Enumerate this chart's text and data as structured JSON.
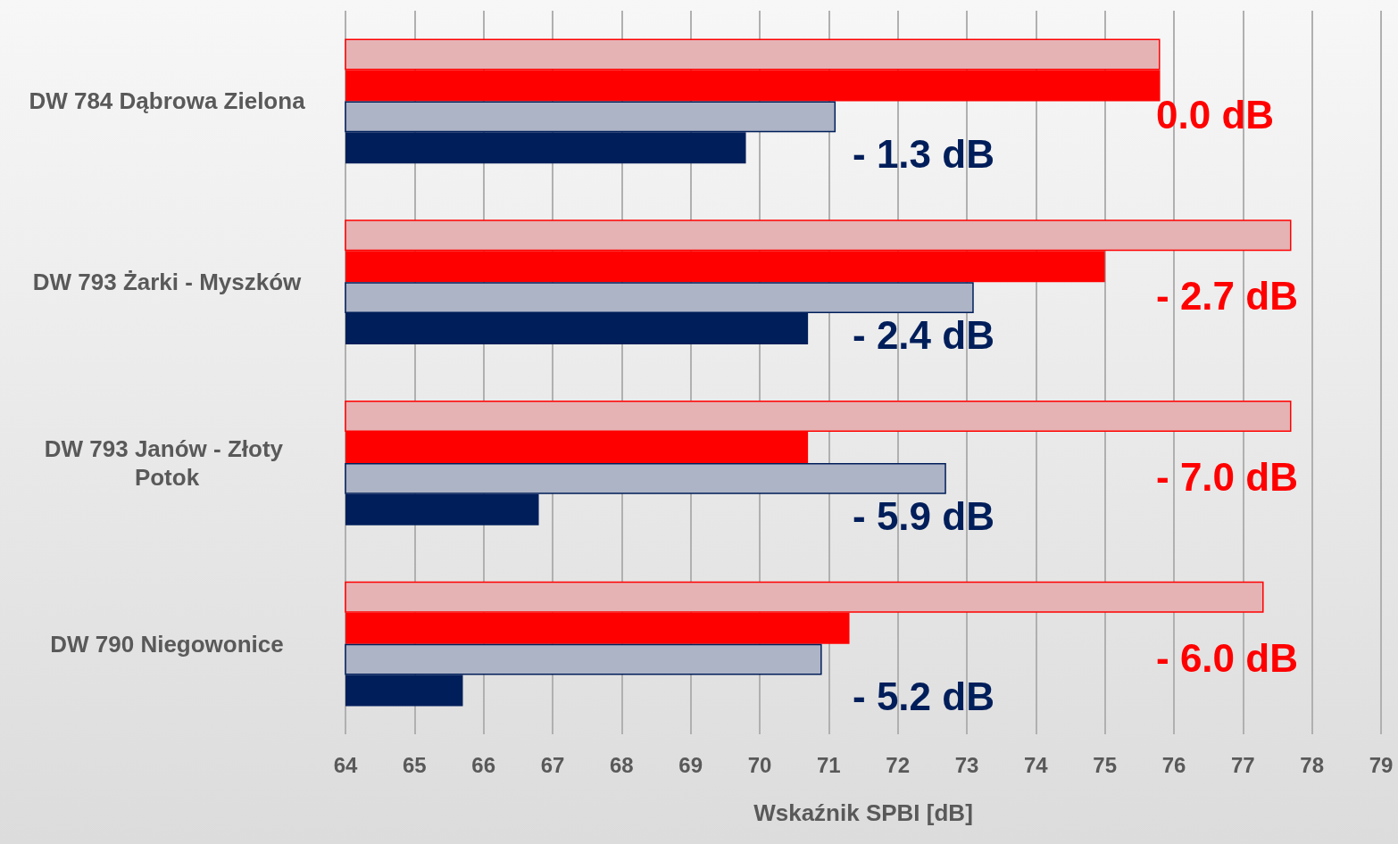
{
  "chart_data": {
    "type": "bar",
    "orientation": "horizontal",
    "xlabel": "Wskaźnik SPBI [dB]",
    "categories": [
      "DW 784 Dąbrowa Zielona",
      "DW 793 Żarki - Myszków",
      "DW 793 Janów - Złoty Potok",
      "DW 790 Niegowonice"
    ],
    "series": [
      {
        "color": "#e6b3b5",
        "values": [
          75.8,
          77.7,
          77.7,
          77.3
        ]
      },
      {
        "color": "#ff0000",
        "values": [
          75.8,
          75.0,
          70.7,
          71.3
        ]
      },
      {
        "color": "#adb4c6",
        "values": [
          71.1,
          73.1,
          72.7,
          70.9
        ]
      },
      {
        "color": "#001e5a",
        "values": [
          69.8,
          70.7,
          66.8,
          65.7
        ]
      }
    ],
    "annotations": [
      "0.0 dB",
      "- 1.3 dB",
      "- 2.7 dB",
      "- 2.4 dB",
      "- 7.0 dB",
      "- 5.9 dB",
      "- 6.0 dB",
      "- 5.2 dB"
    ],
    "xlim": [
      64,
      79
    ],
    "xticks": [
      64,
      65,
      66,
      67,
      68,
      69,
      70,
      71,
      72,
      73,
      74,
      75,
      76,
      77,
      78,
      79
    ],
    "grid": "x"
  }
}
